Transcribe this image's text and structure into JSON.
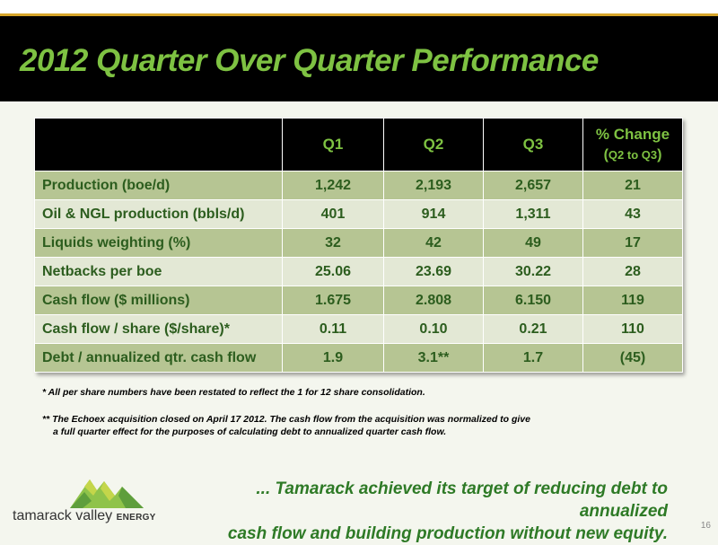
{
  "slide": {
    "title": "2012 Quarter Over Quarter Performance",
    "page_number": "16"
  },
  "table": {
    "headers": [
      "Q1",
      "Q2",
      "Q3",
      "% Change"
    ],
    "pct_sub_open": "(",
    "pct_sub_range": "Q2 to Q3",
    "pct_sub_close": ")",
    "rows": [
      {
        "label": "Production (boe/d)",
        "q1": "1,242",
        "q2": "2,193",
        "q3": "2,657",
        "pct": "21"
      },
      {
        "label": "Oil & NGL production (bbls/d)",
        "q1": "401",
        "q2": "914",
        "q3": "1,311",
        "pct": "43"
      },
      {
        "label": "Liquids weighting (%)",
        "q1": "32",
        "q2": "42",
        "q3": "49",
        "pct": "17"
      },
      {
        "label": "Netbacks per boe",
        "q1": "25.06",
        "q2": "23.69",
        "q3": "30.22",
        "pct": "28"
      },
      {
        "label": "Cash flow ($ millions)",
        "q1": "1.675",
        "q2": "2.808",
        "q3": "6.150",
        "pct": "119"
      },
      {
        "label": "Cash flow / share ($/share)*",
        "q1": "0.11",
        "q2": "0.10",
        "q3": "0.21",
        "pct": "110"
      },
      {
        "label": "Debt / annualized qtr. cash flow",
        "q1": "1.9",
        "q2": "3.1**",
        "q3": "1.7",
        "pct": "(45)"
      }
    ]
  },
  "footnotes": {
    "note1": "* All per share numbers have been restated to reflect the 1 for 12 share consolidation.",
    "note2_line1": "** The Echoex acquisition closed on April 17 2012. The cash flow from the acquisition was normalized to give",
    "note2_line2": "a full quarter effect for the purposes of calculating debt to annualized quarter cash flow."
  },
  "closing": {
    "line1": "... Tamarack achieved its target of reducing debt to annualized",
    "line2": "cash flow and building production without new equity."
  },
  "logo": {
    "name": "tamarack valley",
    "suffix": "ENERGY",
    "icon": "mountain-logo-icon",
    "colors": [
      "#8fc34a",
      "#c4d64a",
      "#5e9e3c"
    ]
  }
}
